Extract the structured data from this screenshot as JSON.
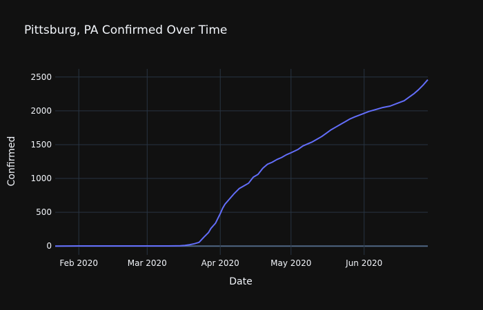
{
  "chart_data": {
    "type": "line",
    "title": "Pittsburg, PA Confirmed Over Time",
    "xlabel": "Date",
    "ylabel": "Confirmed",
    "x_axis_type": "date",
    "xlim": [
      "2020-01-22",
      "2020-06-28"
    ],
    "ylim": [
      -130,
      2620
    ],
    "grid": true,
    "x_ticks": [
      {
        "value": "2020-02-01",
        "label": "Feb 2020"
      },
      {
        "value": "2020-03-01",
        "label": "Mar 2020"
      },
      {
        "value": "2020-04-01",
        "label": "Apr 2020"
      },
      {
        "value": "2020-05-01",
        "label": "May 2020"
      },
      {
        "value": "2020-06-01",
        "label": "Jun 2020"
      }
    ],
    "y_ticks": [
      0,
      500,
      1000,
      1500,
      2000,
      2500
    ],
    "line_color": "#636efa",
    "series": [
      {
        "x": [
          "2020-01-22",
          "2020-02-01",
          "2020-02-15",
          "2020-03-01",
          "2020-03-10",
          "2020-03-15",
          "2020-03-17",
          "2020-03-19",
          "2020-03-21",
          "2020-03-23",
          "2020-03-25",
          "2020-03-27",
          "2020-03-28",
          "2020-03-29",
          "2020-03-30",
          "2020-03-31",
          "2020-04-01",
          "2020-04-02",
          "2020-04-03",
          "2020-04-05",
          "2020-04-07",
          "2020-04-09",
          "2020-04-11",
          "2020-04-13",
          "2020-04-15",
          "2020-04-17",
          "2020-04-19",
          "2020-04-20",
          "2020-04-21",
          "2020-04-23",
          "2020-04-25",
          "2020-04-27",
          "2020-04-29",
          "2020-05-01",
          "2020-05-04",
          "2020-05-06",
          "2020-05-08",
          "2020-05-10",
          "2020-05-12",
          "2020-05-14",
          "2020-05-16",
          "2020-05-18",
          "2020-05-20",
          "2020-05-22",
          "2020-05-24",
          "2020-05-26",
          "2020-05-28",
          "2020-05-31",
          "2020-06-03",
          "2020-06-06",
          "2020-06-09",
          "2020-06-12",
          "2020-06-15",
          "2020-06-18",
          "2020-06-20",
          "2020-06-22",
          "2020-06-24",
          "2020-06-26",
          "2020-06-28"
        ],
        "values": [
          0,
          2,
          2,
          3,
          3,
          5,
          10,
          20,
          35,
          55,
          130,
          200,
          260,
          300,
          340,
          410,
          480,
          560,
          620,
          700,
          780,
          850,
          890,
          930,
          1020,
          1060,
          1150,
          1180,
          1210,
          1240,
          1280,
          1310,
          1350,
          1380,
          1430,
          1480,
          1510,
          1540,
          1580,
          1620,
          1670,
          1720,
          1760,
          1800,
          1840,
          1880,
          1910,
          1950,
          1990,
          2020,
          2050,
          2070,
          2110,
          2150,
          2200,
          2250,
          2310,
          2380,
          2460
        ]
      }
    ]
  }
}
